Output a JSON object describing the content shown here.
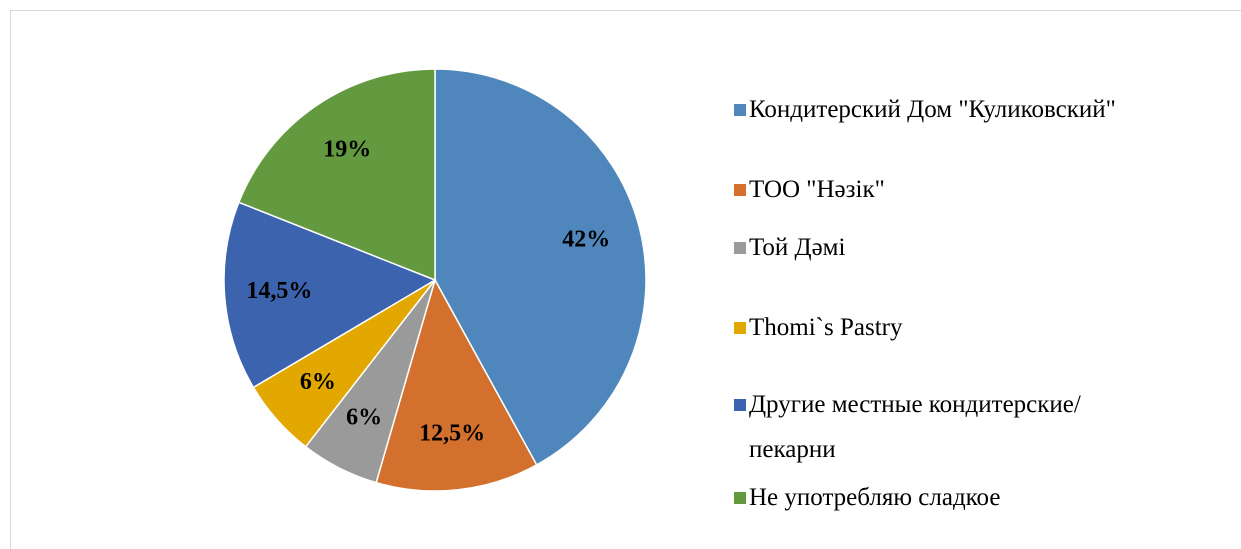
{
  "chart_data": {
    "type": "pie",
    "categories": [
      "Кондитерский Дом \"Куликовский\"",
      "ТОО \"Нәзік\"",
      "Той Дәмі",
      "Thomi`s Pastry",
      "Другие местные кондитерские/пекарни",
      "Не употребляю сладкое"
    ],
    "values": [
      42,
      12.5,
      6,
      6,
      14.5,
      19
    ],
    "value_labels": [
      "42%",
      "12,5%",
      "6%",
      "6%",
      "14,5%",
      "19%"
    ],
    "colors": [
      "#4f87bd",
      "#d4702d",
      "#9a9a9a",
      "#e3a800",
      "#3c63ad",
      "#63993f"
    ],
    "legend": "right"
  }
}
